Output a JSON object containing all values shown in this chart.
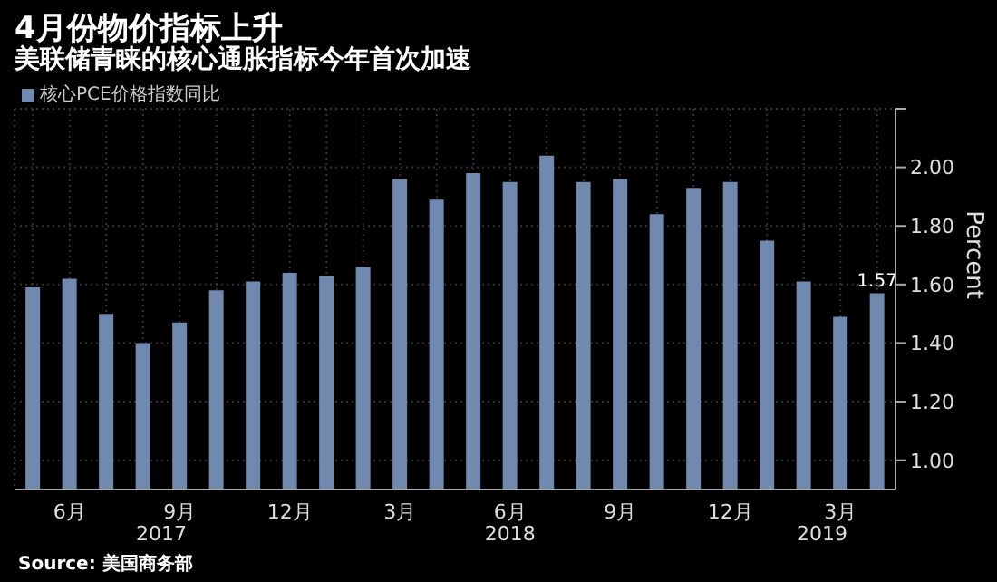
{
  "chart_data": {
    "type": "bar",
    "title": "4月份物价指标上升",
    "subtitle": "美联储青睐的核心通胀指标今年首次加速",
    "ylabel": "Percent",
    "categories": [
      null,
      "6月",
      null,
      null,
      "9月",
      null,
      null,
      "12月",
      null,
      null,
      "3月",
      null,
      null,
      "6月",
      null,
      null,
      "9月",
      null,
      null,
      "12月",
      null,
      null,
      "3月",
      null
    ],
    "series": [
      {
        "name": "核心PCE价格指数同比",
        "color": "#7189ae",
        "values": [
          1.59,
          1.62,
          1.5,
          1.4,
          1.47,
          1.58,
          1.61,
          1.64,
          1.63,
          1.66,
          1.96,
          1.89,
          1.98,
          1.95,
          2.04,
          1.95,
          1.96,
          1.84,
          1.93,
          1.95,
          1.75,
          1.61,
          1.49,
          1.57
        ],
        "value_labels": [
          null,
          null,
          null,
          null,
          null,
          null,
          null,
          null,
          null,
          null,
          null,
          null,
          null,
          null,
          null,
          null,
          null,
          null,
          null,
          null,
          null,
          null,
          null,
          "1.57"
        ]
      }
    ],
    "ylim": [
      0.9,
      2.2
    ],
    "yticks": [
      {
        "value": 1,
        "label": "1.00"
      },
      {
        "value": 1.2,
        "label": "1.20"
      },
      {
        "value": 1.4,
        "label": "1.40"
      },
      {
        "value": 1.6,
        "label": "1.60"
      },
      {
        "value": 1.8,
        "label": "1.80"
      },
      {
        "value": 2,
        "label": "2.00"
      },
      {
        "value": 2.2,
        "label": null
      }
    ],
    "grid": true,
    "legend": "top left",
    "annotations": [
      "2017",
      "2018",
      "2019",
      "Source: 美国商务部"
    ]
  }
}
